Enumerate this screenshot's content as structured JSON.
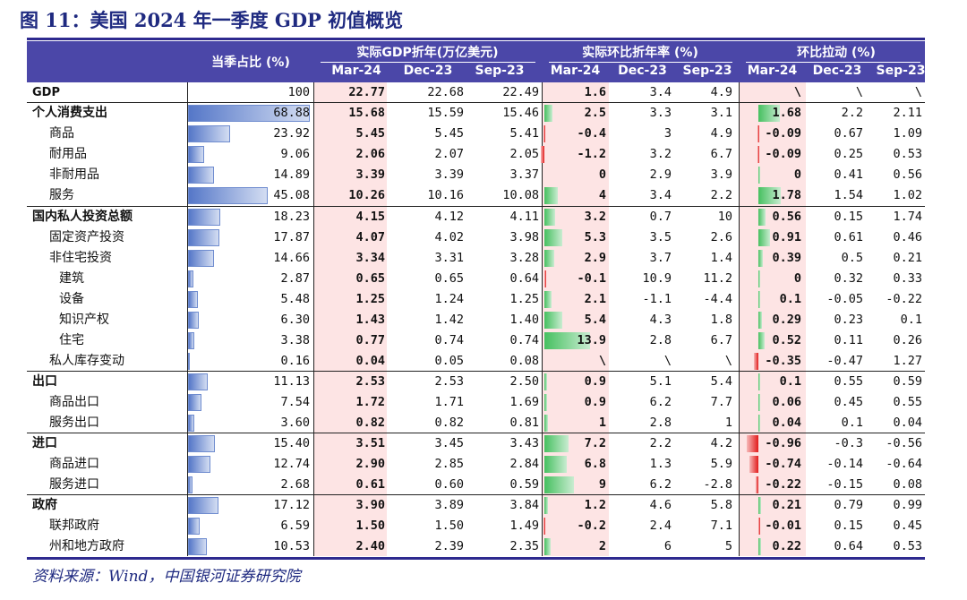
{
  "title": "图 11：美国 2024 年一季度 GDP 初值概览",
  "source": "资料来源：Wind，中国银河证券研究院",
  "colors": {
    "header_bg": "#4b47a8",
    "highlight_col": "#fde4e4",
    "positive_bar": "#46c060",
    "negative_bar": "#e21b1b",
    "share_bar": "#5577c8"
  },
  "header": {
    "share": "当季占比 (%)",
    "groups": [
      "实际GDP折年(万亿美元)",
      "实际环比折年率 (%)",
      "环比拉动 (%)"
    ],
    "periods": [
      "Mar-24",
      "Dec-23",
      "Sep-23"
    ]
  },
  "rows": [
    {
      "name": "GDP",
      "level": 0,
      "bold_name": true,
      "share": "100",
      "gdp": [
        "22.77",
        "22.68",
        "22.49"
      ],
      "qoq": [
        "1.6",
        "3.4",
        "4.9"
      ],
      "contrib": [
        "\\",
        "\\",
        "\\"
      ]
    },
    {
      "name": "个人消费支出",
      "level": 0,
      "bold_name": true,
      "share": "68.88",
      "gdp": [
        "15.68",
        "15.59",
        "15.46"
      ],
      "qoq": [
        "2.5",
        "3.3",
        "3.1"
      ],
      "contrib": [
        "1.68",
        "2.2",
        "2.11"
      ]
    },
    {
      "name": "商品",
      "level": 1,
      "share": "23.92",
      "gdp": [
        "5.45",
        "5.45",
        "5.41"
      ],
      "qoq": [
        "-0.4",
        "3",
        "4.9"
      ],
      "contrib": [
        "-0.09",
        "0.67",
        "1.09"
      ]
    },
    {
      "name": "耐用品",
      "level": 1,
      "share": "9.06",
      "gdp": [
        "2.06",
        "2.07",
        "2.05"
      ],
      "qoq": [
        "-1.2",
        "3.2",
        "6.7"
      ],
      "contrib": [
        "-0.09",
        "0.25",
        "0.53"
      ]
    },
    {
      "name": "非耐用品",
      "level": 1,
      "share": "14.89",
      "gdp": [
        "3.39",
        "3.39",
        "3.37"
      ],
      "qoq": [
        "0",
        "2.9",
        "3.9"
      ],
      "contrib": [
        "0",
        "0.41",
        "0.56"
      ]
    },
    {
      "name": "服务",
      "level": 1,
      "share": "45.08",
      "gdp": [
        "10.26",
        "10.16",
        "10.08"
      ],
      "qoq": [
        "4",
        "3.4",
        "2.2"
      ],
      "contrib": [
        "1.78",
        "1.54",
        "1.02"
      ]
    },
    {
      "name": "国内私人投资总额",
      "level": 0,
      "bold_name": true,
      "share": "18.23",
      "gdp": [
        "4.15",
        "4.12",
        "4.11"
      ],
      "qoq": [
        "3.2",
        "0.7",
        "10"
      ],
      "contrib": [
        "0.56",
        "0.15",
        "1.74"
      ]
    },
    {
      "name": "固定资产投资",
      "level": 1,
      "share": "17.87",
      "gdp": [
        "4.07",
        "4.02",
        "3.98"
      ],
      "qoq": [
        "5.3",
        "3.5",
        "2.6"
      ],
      "contrib": [
        "0.91",
        "0.61",
        "0.46"
      ]
    },
    {
      "name": "非住宅投资",
      "level": 1,
      "share": "14.66",
      "gdp": [
        "3.34",
        "3.31",
        "3.28"
      ],
      "qoq": [
        "2.9",
        "3.7",
        "1.4"
      ],
      "contrib": [
        "0.39",
        "0.5",
        "0.21"
      ]
    },
    {
      "name": "建筑",
      "level": 2,
      "share": "2.87",
      "gdp": [
        "0.65",
        "0.65",
        "0.64"
      ],
      "qoq": [
        "-0.1",
        "10.9",
        "11.2"
      ],
      "contrib": [
        "0",
        "0.32",
        "0.33"
      ]
    },
    {
      "name": "设备",
      "level": 2,
      "share": "5.48",
      "gdp": [
        "1.25",
        "1.24",
        "1.25"
      ],
      "qoq": [
        "2.1",
        "-1.1",
        "-4.4"
      ],
      "contrib": [
        "0.1",
        "-0.05",
        "-0.22"
      ]
    },
    {
      "name": "知识产权",
      "level": 2,
      "share": "6.30",
      "gdp": [
        "1.43",
        "1.42",
        "1.40"
      ],
      "qoq": [
        "5.4",
        "4.3",
        "1.8"
      ],
      "contrib": [
        "0.29",
        "0.23",
        "0.1"
      ]
    },
    {
      "name": "住宅",
      "level": 2,
      "share": "3.38",
      "gdp": [
        "0.77",
        "0.74",
        "0.74"
      ],
      "qoq": [
        "13.9",
        "2.8",
        "6.7"
      ],
      "contrib": [
        "0.52",
        "0.11",
        "0.26"
      ]
    },
    {
      "name": "私人库存变动",
      "level": 1,
      "share": "0.16",
      "gdp": [
        "0.04",
        "0.05",
        "0.08"
      ],
      "qoq": [
        "\\",
        "\\",
        "\\"
      ],
      "contrib": [
        "-0.35",
        "-0.47",
        "1.27"
      ]
    },
    {
      "name": "出口",
      "level": 0,
      "bold_name": true,
      "share": "11.13",
      "gdp": [
        "2.53",
        "2.53",
        "2.50"
      ],
      "qoq": [
        "0.9",
        "5.1",
        "5.4"
      ],
      "contrib": [
        "0.1",
        "0.55",
        "0.59"
      ]
    },
    {
      "name": "商品出口",
      "level": 1,
      "share": "7.54",
      "gdp": [
        "1.72",
        "1.71",
        "1.69"
      ],
      "qoq": [
        "0.9",
        "6.2",
        "7.7"
      ],
      "contrib": [
        "0.06",
        "0.45",
        "0.55"
      ]
    },
    {
      "name": "服务出口",
      "level": 1,
      "share": "3.60",
      "gdp": [
        "0.82",
        "0.82",
        "0.81"
      ],
      "qoq": [
        "1",
        "2.8",
        "1"
      ],
      "contrib": [
        "0.04",
        "0.1",
        "0.04"
      ]
    },
    {
      "name": "进口",
      "level": 0,
      "bold_name": true,
      "share": "15.40",
      "gdp": [
        "3.51",
        "3.45",
        "3.43"
      ],
      "qoq": [
        "7.2",
        "2.2",
        "4.2"
      ],
      "contrib": [
        "-0.96",
        "-0.3",
        "-0.56"
      ]
    },
    {
      "name": "商品进口",
      "level": 1,
      "share": "12.74",
      "gdp": [
        "2.90",
        "2.85",
        "2.84"
      ],
      "qoq": [
        "6.8",
        "1.3",
        "5.9"
      ],
      "contrib": [
        "-0.74",
        "-0.14",
        "-0.64"
      ]
    },
    {
      "name": "服务进口",
      "level": 1,
      "share": "2.68",
      "gdp": [
        "0.61",
        "0.60",
        "0.59"
      ],
      "qoq": [
        "9",
        "6.2",
        "-2.8"
      ],
      "contrib": [
        "-0.22",
        "-0.15",
        "0.08"
      ]
    },
    {
      "name": "政府",
      "level": 0,
      "bold_name": true,
      "share": "17.12",
      "gdp": [
        "3.90",
        "3.89",
        "3.84"
      ],
      "qoq": [
        "1.2",
        "4.6",
        "5.8"
      ],
      "contrib": [
        "0.21",
        "0.79",
        "0.99"
      ]
    },
    {
      "name": "联邦政府",
      "level": 1,
      "share": "6.59",
      "gdp": [
        "1.50",
        "1.50",
        "1.49"
      ],
      "qoq": [
        "-0.2",
        "2.4",
        "7.1"
      ],
      "contrib": [
        "-0.01",
        "0.15",
        "0.45"
      ]
    },
    {
      "name": "州和地方政府",
      "level": 1,
      "share": "10.53",
      "gdp": [
        "2.40",
        "2.39",
        "2.35"
      ],
      "qoq": [
        "2",
        "6",
        "5"
      ],
      "contrib": [
        "0.22",
        "0.64",
        "0.53"
      ]
    }
  ]
}
